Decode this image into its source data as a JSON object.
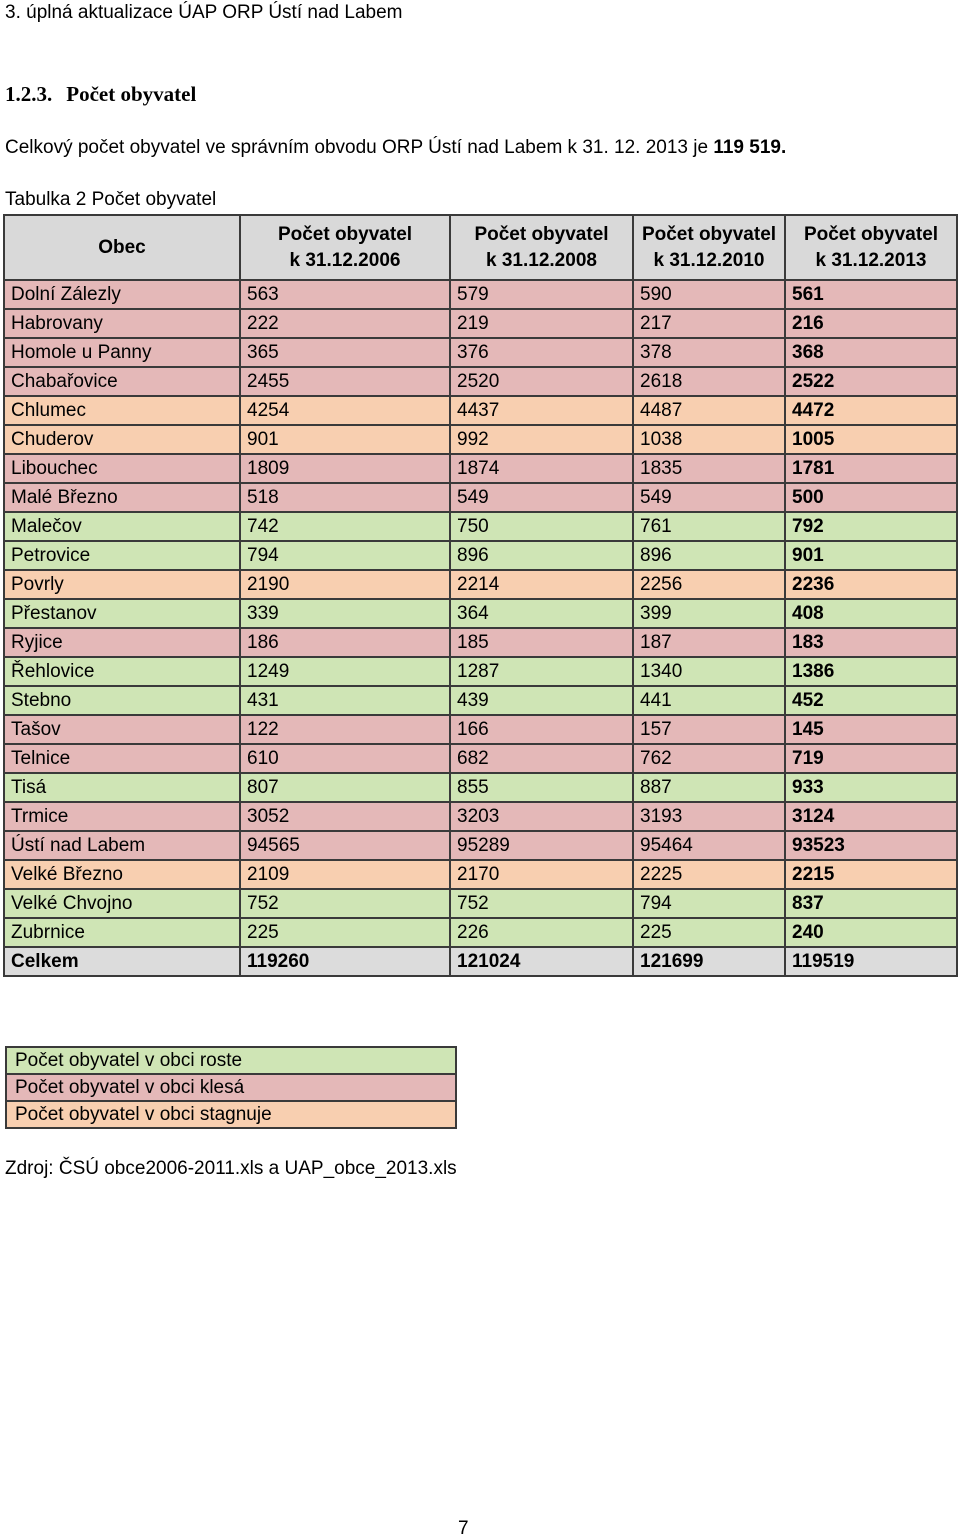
{
  "header": {
    "title": "3. úplná aktualizace ÚAP ORP Ústí nad Labem"
  },
  "section": {
    "number": "1.2.3.",
    "title": "Počet obyvatel"
  },
  "intro": {
    "text": "Celkový počet obyvatel ve správním obvodu ORP Ústí nad Labem k 31. 12. 2013 je ",
    "highlight": "119 519."
  },
  "caption": "Tabulka 2 Počet obyvatel",
  "table": {
    "headers": [
      {
        "line1": "Obec",
        "line2": ""
      },
      {
        "line1": "Počet obyvatel",
        "line2": "k 31.12.2006"
      },
      {
        "line1": "Počet obyvatel",
        "line2": "k 31.12.2008"
      },
      {
        "line1": "Počet obyvatel",
        "line2": "k 31.12.2010"
      },
      {
        "line1": "Počet obyvatel",
        "line2": "k 31.12.2013"
      }
    ],
    "rows": [
      {
        "name": "Dolní Zálezly",
        "v2006": "563",
        "v2008": "579",
        "v2010": "590",
        "v2013": "561",
        "trend": "down"
      },
      {
        "name": "Habrovany",
        "v2006": "222",
        "v2008": "219",
        "v2010": "217",
        "v2013": "216",
        "trend": "down"
      },
      {
        "name": "Homole u Panny",
        "v2006": "365",
        "v2008": "376",
        "v2010": "378",
        "v2013": "368",
        "trend": "down"
      },
      {
        "name": "Chabařovice",
        "v2006": "2455",
        "v2008": "2520",
        "v2010": "2618",
        "v2013": "2522",
        "trend": "down"
      },
      {
        "name": "Chlumec",
        "v2006": "4254",
        "v2008": "4437",
        "v2010": "4487",
        "v2013": "4472",
        "trend": "flat"
      },
      {
        "name": "Chuderov",
        "v2006": "901",
        "v2008": "992",
        "v2010": "1038",
        "v2013": "1005",
        "trend": "flat"
      },
      {
        "name": "Libouchec",
        "v2006": "1809",
        "v2008": "1874",
        "v2010": "1835",
        "v2013": "1781",
        "trend": "down"
      },
      {
        "name": "Malé Březno",
        "v2006": "518",
        "v2008": "549",
        "v2010": "549",
        "v2013": "500",
        "trend": "down"
      },
      {
        "name": "Malečov",
        "v2006": "742",
        "v2008": "750",
        "v2010": "761",
        "v2013": "792",
        "trend": "up"
      },
      {
        "name": "Petrovice",
        "v2006": "794",
        "v2008": "896",
        "v2010": "896",
        "v2013": "901",
        "trend": "up"
      },
      {
        "name": "Povrly",
        "v2006": "2190",
        "v2008": "2214",
        "v2010": "2256",
        "v2013": "2236",
        "trend": "flat"
      },
      {
        "name": "Přestanov",
        "v2006": "339",
        "v2008": "364",
        "v2010": "399",
        "v2013": "408",
        "trend": "up"
      },
      {
        "name": "Ryjice",
        "v2006": "186",
        "v2008": "185",
        "v2010": "187",
        "v2013": "183",
        "trend": "down"
      },
      {
        "name": "Řehlovice",
        "v2006": "1249",
        "v2008": "1287",
        "v2010": "1340",
        "v2013": "1386",
        "trend": "up"
      },
      {
        "name": "Stebno",
        "v2006": "431",
        "v2008": "439",
        "v2010": "441",
        "v2013": "452",
        "trend": "up"
      },
      {
        "name": "Tašov",
        "v2006": "122",
        "v2008": "166",
        "v2010": "157",
        "v2013": "145",
        "trend": "down"
      },
      {
        "name": "Telnice",
        "v2006": "610",
        "v2008": "682",
        "v2010": "762",
        "v2013": "719",
        "trend": "down"
      },
      {
        "name": "Tisá",
        "v2006": "807",
        "v2008": "855",
        "v2010": "887",
        "v2013": "933",
        "trend": "up"
      },
      {
        "name": "Trmice",
        "v2006": "3052",
        "v2008": "3203",
        "v2010": "3193",
        "v2013": "3124",
        "trend": "down"
      },
      {
        "name": "Ústí nad Labem",
        "v2006": "94565",
        "v2008": "95289",
        "v2010": "95464",
        "v2013": "93523",
        "trend": "down"
      },
      {
        "name": "Velké Březno",
        "v2006": "2109",
        "v2008": "2170",
        "v2010": "2225",
        "v2013": "2215",
        "trend": "flat"
      },
      {
        "name": "Velké Chvojno",
        "v2006": "752",
        "v2008": "752",
        "v2010": "794",
        "v2013": "837",
        "trend": "up"
      },
      {
        "name": "Zubrnice",
        "v2006": "225",
        "v2008": "226",
        "v2010": "225",
        "v2013": "240",
        "trend": "up"
      },
      {
        "name": "Celkem",
        "v2006": "119260",
        "v2008": "121024",
        "v2010": "121699",
        "v2013": "119519",
        "trend": "total"
      }
    ]
  },
  "colors": {
    "up": "#cfe5b5",
    "down": "#e4b8b8",
    "flat": "#f8cfb0",
    "header": "#d9d9d9"
  },
  "legend": [
    {
      "label": "Počet obyvatel v obci roste",
      "key": "up"
    },
    {
      "label": "Počet obyvatel v obci klesá",
      "key": "down"
    },
    {
      "label": "Počet obyvatel v obci stagnuje",
      "key": "flat"
    }
  ],
  "source": "Zdroj: ČSÚ obce2006-2011.xls a UAP_obce_2013.xls",
  "page_number": "7"
}
